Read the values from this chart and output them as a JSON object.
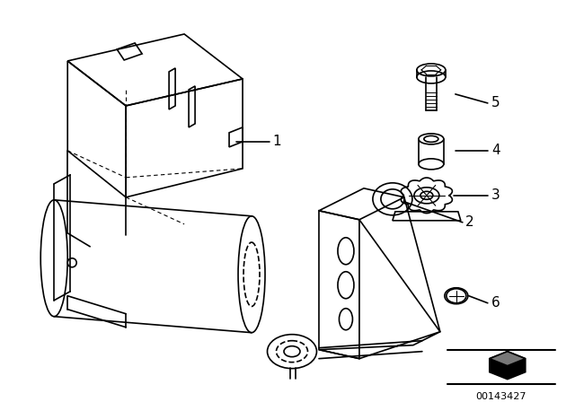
{
  "bg_color": "#ffffff",
  "line_color": "#000000",
  "watermark": "00143427",
  "fig_width": 6.4,
  "fig_height": 4.48,
  "dpi": 100
}
